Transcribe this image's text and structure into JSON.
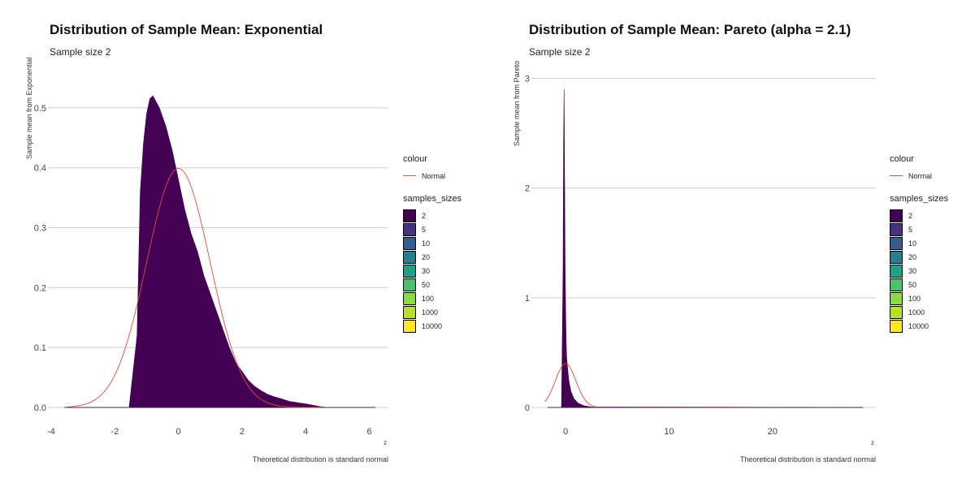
{
  "chart_data": [
    {
      "type": "area",
      "title": "Distribution of Sample Mean: Exponential",
      "subtitle": "Sample size 2",
      "ylabel": "Sample mean from Exponential",
      "xlabel": "z",
      "caption": "Theoretical distribution is standard normal",
      "xlim": [
        -4,
        6.6
      ],
      "ylim": [
        0,
        0.55
      ],
      "x_ticks": [
        "-4",
        "-2",
        "0",
        "2",
        "4",
        "6"
      ],
      "y_ticks": [
        "0.0",
        "0.1",
        "0.2",
        "0.3",
        "0.4",
        "0.5"
      ],
      "grid": "horizontal",
      "legend_position": "right",
      "series": [
        {
          "name": "2",
          "kind": "histogram-area",
          "color": "#440154",
          "x": [
            -1.55,
            -1.3,
            -1.2,
            -1.1,
            -1.0,
            -0.9,
            -0.8,
            -0.6,
            -0.4,
            -0.2,
            0.0,
            0.2,
            0.4,
            0.6,
            0.8,
            1.0,
            1.2,
            1.4,
            1.6,
            1.8,
            2.0,
            2.2,
            2.4,
            2.6,
            2.8,
            3.0,
            3.2,
            3.5,
            4.0,
            4.3,
            4.6
          ],
          "y": [
            0.0,
            0.12,
            0.36,
            0.44,
            0.49,
            0.515,
            0.52,
            0.5,
            0.47,
            0.43,
            0.38,
            0.33,
            0.29,
            0.26,
            0.22,
            0.19,
            0.16,
            0.13,
            0.1,
            0.075,
            0.06,
            0.045,
            0.035,
            0.028,
            0.022,
            0.018,
            0.015,
            0.01,
            0.006,
            0.003,
            0.0
          ]
        },
        {
          "name": "Normal",
          "kind": "line",
          "color": "#e8473e",
          "function": "standard normal density",
          "x_range": [
            -3.5,
            4.5
          ]
        }
      ]
    },
    {
      "type": "area",
      "title": "Distribution of Sample Mean: Pareto (alpha = 2.1)",
      "subtitle": "Sample size 2",
      "ylabel": "Sample mean from Pareto",
      "xlabel": "z",
      "caption": "Theoretical distribution is standard normal",
      "xlim": [
        -3,
        30
      ],
      "ylim": [
        0,
        3.1
      ],
      "x_ticks": [
        "0",
        "10",
        "20"
      ],
      "y_ticks": [
        "0",
        "1",
        "2",
        "3"
      ],
      "grid": "horizontal",
      "legend_position": "right",
      "series": [
        {
          "name": "2",
          "kind": "histogram-area",
          "color": "#440154",
          "x": [
            -0.4,
            -0.25,
            -0.2,
            -0.15,
            -0.1,
            -0.05,
            0.0,
            0.05,
            0.1,
            0.2,
            0.3,
            0.5,
            0.8,
            1.2,
            1.8,
            2.5,
            28.5
          ],
          "y": [
            0.0,
            1.25,
            2.4,
            2.9,
            2.1,
            1.3,
            0.9,
            0.6,
            0.45,
            0.35,
            0.25,
            0.15,
            0.08,
            0.04,
            0.015,
            0.004,
            0.0
          ]
        },
        {
          "name": "Normal",
          "kind": "line",
          "color": "#e8473e",
          "function": "standard normal density",
          "x_range": [
            -2,
            3
          ]
        }
      ]
    }
  ],
  "legend": {
    "colour_title": "colour",
    "colour_items": [
      {
        "label": "Normal",
        "color": "#e8473e"
      }
    ],
    "sizes_title": "samples_sizes",
    "size_items": [
      {
        "label": "2",
        "color": "#440154"
      },
      {
        "label": "5",
        "color": "#46337e"
      },
      {
        "label": "10",
        "color": "#365c8d"
      },
      {
        "label": "20",
        "color": "#277f8e"
      },
      {
        "label": "30",
        "color": "#1fa187"
      },
      {
        "label": "50",
        "color": "#4ac16d"
      },
      {
        "label": "100",
        "color": "#8fd744"
      },
      {
        "label": "1000",
        "color": "#b8de29"
      },
      {
        "label": "10000",
        "color": "#fde725"
      }
    ]
  }
}
